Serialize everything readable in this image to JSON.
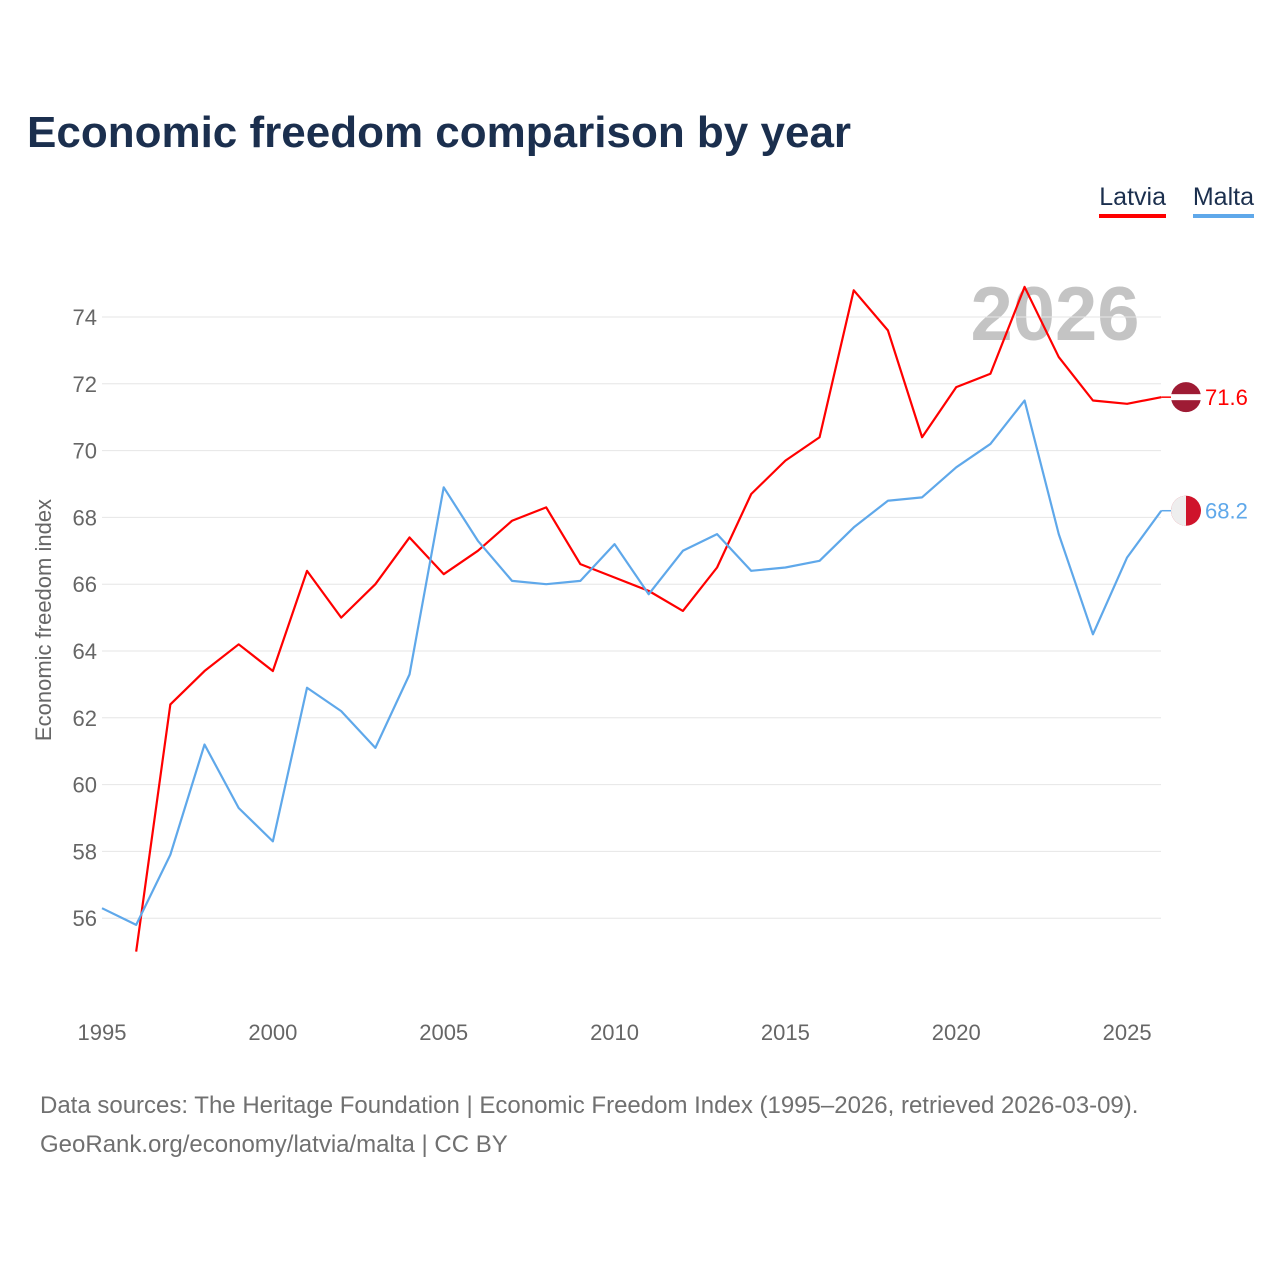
{
  "chart_data": {
    "type": "line",
    "title": "Economic freedom comparison by year",
    "xlabel": "",
    "ylabel": "Economic freedom index",
    "xlim": [
      1995,
      2026
    ],
    "ylim": [
      54,
      75.5
    ],
    "xticks": [
      1995,
      2000,
      2005,
      2010,
      2015,
      2020,
      2025
    ],
    "yticks": [
      56,
      58,
      60,
      62,
      64,
      66,
      68,
      70,
      72,
      74
    ],
    "grid": true,
    "legend_position": "top-right",
    "watermark_year": "2026",
    "series": [
      {
        "name": "Latvia",
        "color": "#ff0000",
        "end_label": "71.6",
        "x": [
          1996,
          1997,
          1998,
          1999,
          2000,
          2001,
          2002,
          2003,
          2004,
          2005,
          2006,
          2007,
          2008,
          2009,
          2010,
          2011,
          2012,
          2013,
          2014,
          2015,
          2016,
          2017,
          2018,
          2019,
          2020,
          2021,
          2022,
          2023,
          2024,
          2025,
          2026
        ],
        "values": [
          55.0,
          62.4,
          63.4,
          64.2,
          63.4,
          66.4,
          65.0,
          66.0,
          67.4,
          66.3,
          67.0,
          67.9,
          68.3,
          66.6,
          66.2,
          65.8,
          65.2,
          66.5,
          68.7,
          69.7,
          70.4,
          74.8,
          73.6,
          70.4,
          71.9,
          72.3,
          74.9,
          72.8,
          71.5,
          71.4,
          71.6
        ]
      },
      {
        "name": "Malta",
        "color": "#5fa8ea",
        "end_label": "68.2",
        "x": [
          1995,
          1996,
          1997,
          1998,
          1999,
          2000,
          2001,
          2002,
          2003,
          2004,
          2005,
          2006,
          2007,
          2008,
          2009,
          2010,
          2011,
          2012,
          2013,
          2014,
          2015,
          2016,
          2017,
          2018,
          2019,
          2020,
          2021,
          2022,
          2023,
          2024,
          2025,
          2026
        ],
        "values": [
          56.3,
          55.8,
          57.9,
          61.2,
          59.3,
          58.3,
          62.9,
          62.2,
          61.1,
          63.3,
          68.9,
          67.3,
          66.1,
          66.0,
          66.1,
          67.2,
          65.7,
          67.0,
          67.5,
          66.4,
          66.5,
          66.7,
          67.7,
          68.5,
          68.6,
          69.5,
          70.2,
          71.5,
          67.5,
          64.5,
          66.8,
          68.2
        ]
      }
    ]
  },
  "source_line1": "Data sources: The Heritage Foundation | Economic Freedom Index (1995–2026, retrieved 2026-03-09).",
  "source_line2": "GeoRank.org/economy/latvia/malta | CC BY"
}
